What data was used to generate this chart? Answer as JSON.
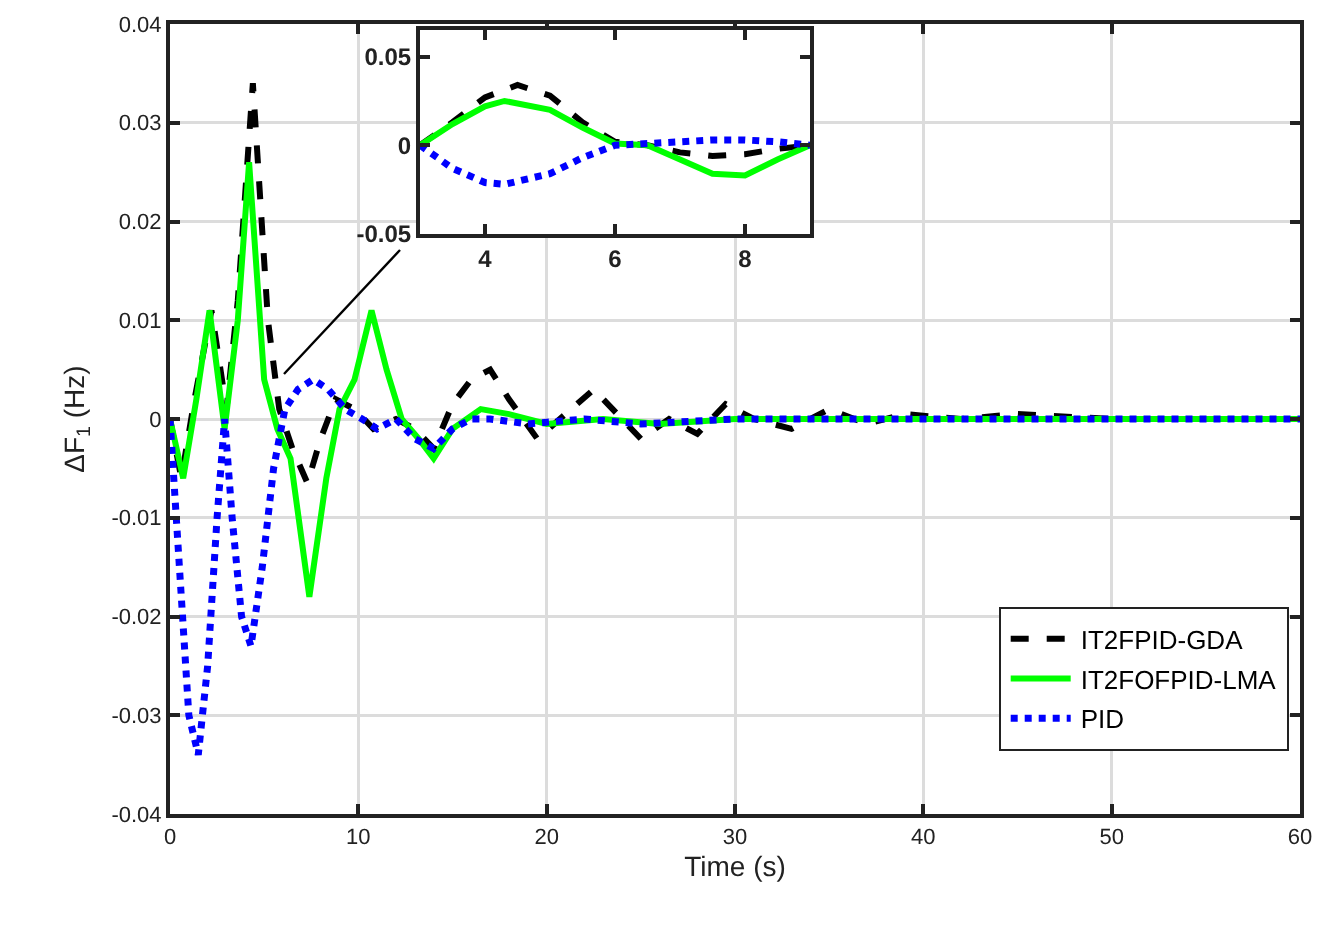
{
  "chart_data": [
    {
      "type": "line",
      "xlabel": "Time (s)",
      "ylabel": "ΔF$_{1}$ (Hz)",
      "xlim": [
        0,
        60
      ],
      "ylim": [
        -0.04,
        0.04
      ],
      "xticks": [
        0,
        10,
        20,
        30,
        40,
        50,
        60
      ],
      "yticks": [
        -0.04,
        -0.03,
        -0.02,
        -0.01,
        0,
        0.01,
        0.02,
        0.03,
        0.04
      ],
      "grid": true,
      "legend": "bottom right",
      "marker": "none",
      "series": [
        {
          "name": "IT2FPID-GDA",
          "color": "#000000",
          "line_style": "dashed",
          "x": [
            0,
            0.6,
            1.3,
            2.2,
            3.0,
            3.6,
            4.4,
            5.2,
            5.8,
            6.5,
            7.3,
            8.0,
            8.8,
            9.8,
            10.8,
            12,
            13,
            14,
            15,
            16,
            17,
            18,
            19.5,
            21,
            22.5,
            24,
            25,
            26.5,
            28,
            29.5,
            31,
            33,
            35,
            37,
            39,
            42,
            45,
            50,
            55,
            60
          ],
          "values": [
            0,
            -0.006,
            0.002,
            0.011,
            0.001,
            0.012,
            0.034,
            0.01,
            0.001,
            -0.003,
            -0.0065,
            -0.002,
            0.002,
            0.001,
            -0.001,
            0,
            -0.001,
            -0.003,
            0.0015,
            0.004,
            0.005,
            0.002,
            -0.002,
            0.0005,
            0.003,
            0,
            -0.002,
            0,
            -0.0015,
            0.0015,
            0,
            -0.001,
            0.001,
            -0.0005,
            0.0005,
            0,
            0.0005,
            0,
            0,
            0
          ]
        },
        {
          "name": "IT2FOFPID-LMA",
          "color": "#00ff00",
          "line_style": "solid",
          "x": [
            0,
            0.7,
            1.4,
            2.1,
            2.9,
            3.6,
            4.2,
            5.0,
            5.7,
            6.4,
            7.4,
            8.3,
            9.0,
            9.8,
            10.7,
            11.5,
            12.3,
            13.2,
            14,
            15,
            16.5,
            18,
            20,
            23,
            26,
            30,
            40,
            60
          ],
          "values": [
            0,
            -0.006,
            0.002,
            0.011,
            -0.001,
            0.01,
            0.026,
            0.004,
            -0.001,
            -0.004,
            -0.018,
            -0.006,
            0.001,
            0.004,
            0.011,
            0.005,
            0,
            -0.002,
            -0.004,
            -0.001,
            0.001,
            0.0005,
            -0.0005,
            0,
            -0.0005,
            0,
            0,
            0
          ]
        },
        {
          "name": "PID",
          "color": "#0000ff",
          "line_style": "dotted",
          "x": [
            0,
            0.5,
            1.0,
            1.5,
            2.0,
            2.5,
            2.9,
            3.3,
            3.8,
            4.3,
            4.9,
            5.5,
            6.1,
            6.8,
            7.6,
            8.4,
            9.3,
            10.2,
            11,
            12,
            13,
            14,
            15,
            16,
            17,
            19,
            22,
            25,
            30,
            40,
            60
          ],
          "values": [
            0,
            -0.015,
            -0.03,
            -0.034,
            -0.025,
            -0.01,
            0,
            -0.01,
            -0.02,
            -0.023,
            -0.015,
            -0.005,
            0.001,
            0.003,
            0.004,
            0.003,
            0.001,
            0,
            -0.001,
            0,
            -0.002,
            -0.003,
            -0.001,
            0,
            0,
            -0.0005,
            0,
            -0.0005,
            0,
            0,
            0
          ]
        }
      ]
    },
    {
      "type": "line",
      "xlim": [
        3,
        9
      ],
      "ylim": [
        -0.05,
        0.065
      ],
      "xticks": [
        4,
        6,
        8
      ],
      "yticks": [
        -0.05,
        0,
        0.05
      ],
      "grid": false,
      "legend": false,
      "marker": "none",
      "series": [
        {
          "color": "#000000",
          "line_style": "dashed",
          "x": [
            3,
            3.5,
            4,
            4.5,
            5,
            5.5,
            6,
            6.5,
            7,
            7.5,
            8,
            8.5,
            9
          ],
          "values": [
            0,
            0.013,
            0.027,
            0.034,
            0.028,
            0.013,
            0.002,
            0,
            -0.004,
            -0.006,
            -0.005,
            -0.002,
            0
          ]
        },
        {
          "color": "#00ff00",
          "line_style": "solid",
          "x": [
            3,
            3.5,
            4,
            4.3,
            5,
            5.5,
            6,
            6.5,
            7,
            7.5,
            8,
            8.5,
            9
          ],
          "values": [
            0,
            0.012,
            0.022,
            0.025,
            0.02,
            0.01,
            0.001,
            0,
            -0.008,
            -0.016,
            -0.017,
            -0.008,
            0
          ]
        },
        {
          "color": "#0000ff",
          "line_style": "dotted",
          "x": [
            3,
            3.5,
            4,
            4.3,
            5,
            5.5,
            6,
            6.5,
            7,
            7.5,
            8,
            8.5,
            9
          ],
          "values": [
            0,
            -0.013,
            -0.021,
            -0.022,
            -0.016,
            -0.007,
            0,
            0.001,
            0.002,
            0.003,
            0.003,
            0.002,
            0
          ]
        }
      ]
    }
  ]
}
